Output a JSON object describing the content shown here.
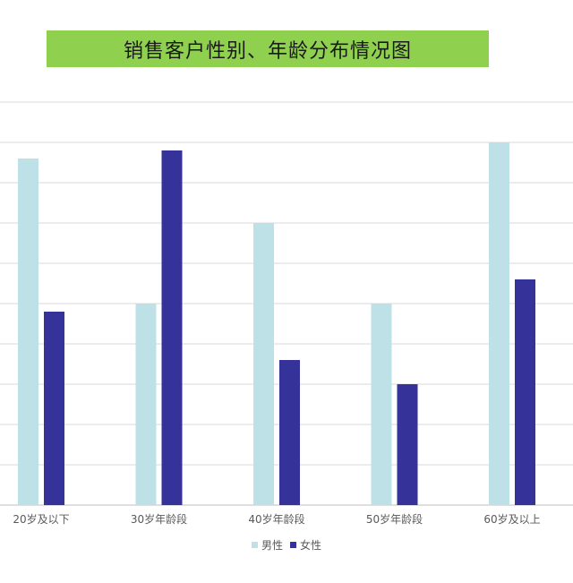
{
  "chart_data": {
    "type": "bar",
    "title": "销售客户性别、年龄分布情况图",
    "categories": [
      "20岁及以下",
      "30岁年龄段",
      "40岁年龄段",
      "50岁年龄段",
      "60岁及以上"
    ],
    "series": [
      {
        "name": "男性",
        "color": "#bde1e6",
        "values": [
          8.6,
          5.0,
          7.0,
          5.0,
          9.0
        ]
      },
      {
        "name": "女性",
        "color": "#35339a",
        "values": [
          4.8,
          8.8,
          3.6,
          3.0,
          5.6
        ]
      }
    ],
    "ylim": [
      0,
      10
    ],
    "grid": true,
    "legend": "bottom"
  }
}
